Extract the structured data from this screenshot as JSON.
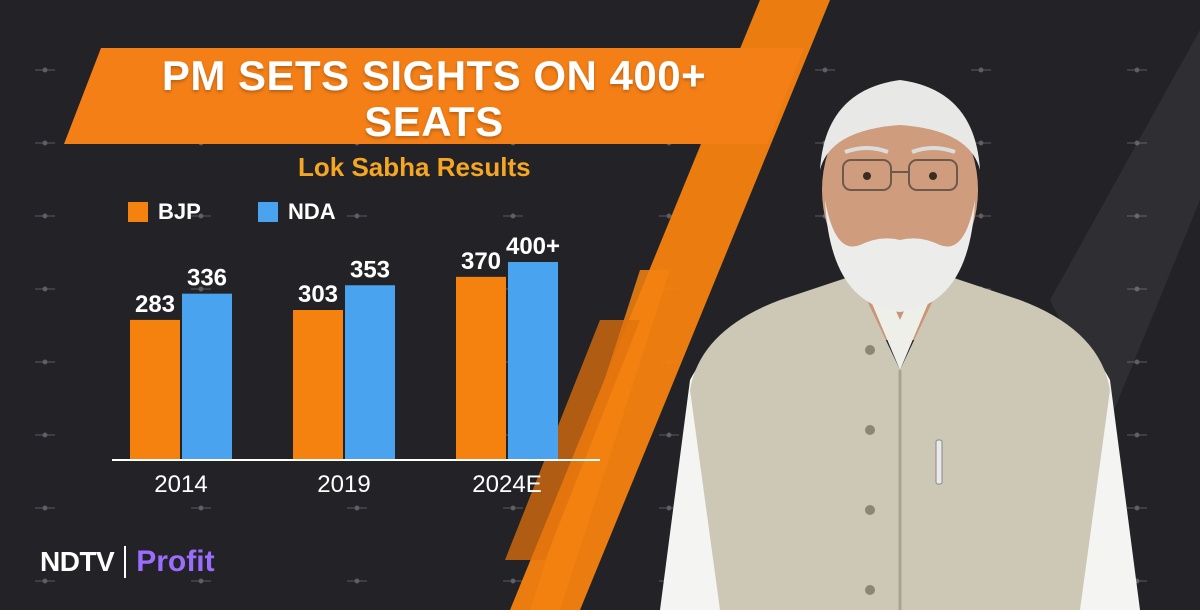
{
  "title_lines": [
    "PM SETS SIGHTS ON 400+",
    "SEATS"
  ],
  "subtitle": "Lok Sabha Results",
  "logo": {
    "brand": "NDTV",
    "product": "Profit"
  },
  "colors": {
    "bjp": "#f5820f",
    "nda": "#4aa3ee",
    "banner": "#f57f17",
    "subtitle": "#f5a623",
    "background": "#232327"
  },
  "chart_data": {
    "type": "bar",
    "title": "PM SETS SIGHTS ON 400+ SEATS",
    "subtitle": "Lok Sabha Results",
    "categories": [
      "2014",
      "2019",
      "2024E"
    ],
    "series": [
      {
        "name": "BJP",
        "values": [
          283,
          303,
          370
        ],
        "labels": [
          "283",
          "303",
          "370"
        ]
      },
      {
        "name": "NDA",
        "values": [
          336,
          353,
          400
        ],
        "labels": [
          "336",
          "353",
          "400+"
        ]
      }
    ],
    "ylim": [
      0,
      400
    ],
    "grid": false,
    "legend_position": "top-left",
    "xlabel": "",
    "ylabel": ""
  }
}
